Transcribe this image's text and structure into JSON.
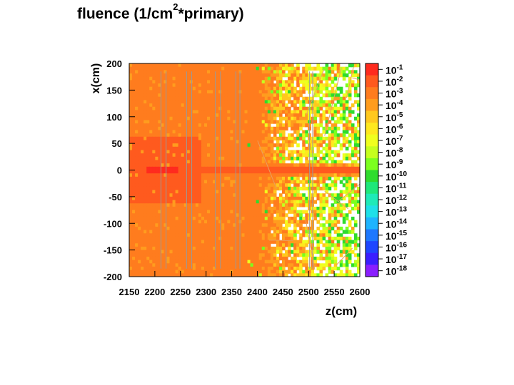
{
  "chart_data": {
    "type": "heatmap",
    "title": {
      "prefix": "fluence (1/cm",
      "sup": "2",
      "suffix": "*primary)"
    },
    "xlabel": "z(cm)",
    "ylabel": "x(cm)",
    "xlim": [
      2150,
      2600
    ],
    "ylim": [
      -200,
      200
    ],
    "x_ticks": [
      2150,
      2200,
      2250,
      2300,
      2350,
      2400,
      2450,
      2500,
      2550,
      2600
    ],
    "y_ticks": [
      200,
      150,
      100,
      50,
      0,
      -50,
      -100,
      -150,
      -200
    ],
    "colorbar": {
      "scale": "log",
      "range": [
        1e-18,
        0.1
      ],
      "labels": [
        {
          "base": "10",
          "exp": "-1"
        },
        {
          "base": "10",
          "exp": "-2"
        },
        {
          "base": "10",
          "exp": "-3"
        },
        {
          "base": "10",
          "exp": "-4"
        },
        {
          "base": "10",
          "exp": "-5"
        },
        {
          "base": "10",
          "exp": "-6"
        },
        {
          "base": "10",
          "exp": "-7"
        },
        {
          "base": "10",
          "exp": "-8"
        },
        {
          "base": "10",
          "exp": "-9"
        },
        {
          "base": "10",
          "exp": "-10"
        },
        {
          "base": "10",
          "exp": "-11"
        },
        {
          "base": "10",
          "exp": "-12"
        },
        {
          "base": "10",
          "exp": "-13"
        },
        {
          "base": "10",
          "exp": "-14"
        },
        {
          "base": "10",
          "exp": "-15"
        },
        {
          "base": "10",
          "exp": "-16"
        },
        {
          "base": "10",
          "exp": "-17"
        },
        {
          "base": "10",
          "exp": "-18"
        }
      ],
      "colors": [
        "#ff2b1e",
        "#ff5a1e",
        "#ff7c1e",
        "#ff9c1e",
        "#ffc81e",
        "#ffe81e",
        "#f0ff1e",
        "#c6ff1e",
        "#7cff1e",
        "#2edc2e",
        "#1ee87a",
        "#1eeab8",
        "#1ee0e8",
        "#1eb4ff",
        "#1e78ff",
        "#1e46ff",
        "#3a1eff",
        "#8a1eff"
      ]
    }
  }
}
